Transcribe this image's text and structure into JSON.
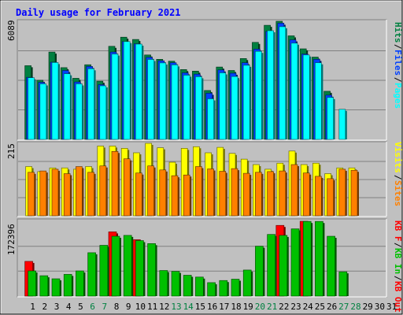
{
  "colors": {
    "background": "#C0C0C0",
    "title": "#0000FF",
    "pages": "#00FFFF",
    "files": "#0040FF",
    "hits": "#008040",
    "visits": "#FFFF00",
    "sites": "#FF8000",
    "kb_in": "#00C000",
    "kb_out": "#FF0000",
    "kb_f": "#FF0000",
    "day_weekday": "#000000",
    "day_weekend": "#008040",
    "day_empty": "#000000"
  },
  "chart_data": {
    "type": "bar",
    "title": "Daily usage for February 2021",
    "days": [
      "1",
      "2",
      "3",
      "4",
      "5",
      "6",
      "7",
      "8",
      "9",
      "10",
      "11",
      "12",
      "13",
      "14",
      "15",
      "16",
      "17",
      "18",
      "19",
      "20",
      "21",
      "22",
      "23",
      "24",
      "25",
      "26",
      "27",
      "28",
      "29",
      "30",
      "31"
    ],
    "weekend_days": [
      "6",
      "7",
      "13",
      "14",
      "20",
      "21",
      "27",
      "28"
    ],
    "days_with_data": 28,
    "panels": [
      {
        "id": "hits_files_pages",
        "max_label": "6089",
        "ymax": 6089,
        "legend": [
          {
            "text": "Hits",
            "key": "hits"
          },
          {
            "text": "Files",
            "key": "files"
          },
          {
            "text": "Pages",
            "key": "pages"
          }
        ],
        "series": [
          {
            "name": "Hits",
            "color_key": "hits",
            "values": [
              3800,
              3050,
              4500,
              3700,
              3150,
              3850,
              3000,
              4800,
              5270,
              5150,
              4350,
              4130,
              4030,
              3600,
              3520,
              2520,
              3730,
              3550,
              4170,
              5000,
              5880,
              6089,
              5340,
              4670,
              4240,
              2480,
              null,
              null
            ]
          },
          {
            "name": "Files",
            "color_key": "files",
            "values": [
              3200,
              2940,
              3980,
              3550,
              2960,
              3760,
              2820,
              4500,
              5040,
              4930,
              4230,
              4050,
              3950,
              3430,
              3360,
              2380,
              3580,
              3410,
              3950,
              4650,
              5570,
              5990,
              5130,
              4400,
              4130,
              2280,
              null,
              null
            ]
          },
          {
            "name": "Pages",
            "color_key": "pages",
            "values": [
              3180,
              2860,
              3960,
              3380,
              2860,
              3640,
              2760,
              4400,
              5040,
              4910,
              4120,
              3940,
              3840,
              3310,
              3230,
              2090,
              3430,
              3240,
              3820,
              4540,
              5600,
              5810,
              4960,
              4350,
              3950,
              2160,
              1550,
              null
            ]
          }
        ]
      },
      {
        "id": "visits_sites",
        "max_label": "215",
        "ymax": 215,
        "legend": [
          {
            "text": "Visits",
            "key": "visits"
          },
          {
            "text": "Sites",
            "key": "sites"
          }
        ],
        "series": [
          {
            "name": "Visits",
            "color_key": "visits",
            "values": [
              146,
              131,
              142,
              142,
              138,
              146,
              207,
              207,
              200,
              187,
              215,
              202,
              159,
              200,
              205,
              187,
              203,
              185,
              168,
              152,
              138,
              156,
              192,
              152,
              156,
              125,
              142,
              142
            ]
          },
          {
            "name": "Sites",
            "color_key": "sites",
            "values": [
              129,
              133,
              138,
              125,
              146,
              129,
              148,
              191,
              169,
              127,
              148,
              136,
              119,
              121,
              146,
              139,
              132,
              140,
              126,
              129,
              131,
              133,
              152,
              127,
              117,
              110,
              138,
              135
            ]
          }
        ]
      },
      {
        "id": "kbin_kbout",
        "max_label": "172396",
        "ymax": 172396,
        "legend": [
          {
            "text": "KB F",
            "key": "kb_f"
          },
          {
            "text": "KB In",
            "key": "kb_in"
          },
          {
            "text": "KB Out",
            "key": "kb_out"
          }
        ],
        "series": [
          {
            "name": "KB Out",
            "color_key": "kb_out",
            "values": [
              80000,
              null,
              null,
              null,
              null,
              null,
              null,
              148000,
              null,
              130000,
              null,
              null,
              null,
              null,
              null,
              null,
              null,
              null,
              null,
              null,
              null,
              163000,
              null,
              172396,
              null,
              null,
              null,
              null
            ]
          },
          {
            "name": "KB In",
            "color_key": "kb_in",
            "values": [
              58000,
              47000,
              40000,
              50000,
              58000,
              100000,
              117000,
              138000,
              140000,
              128000,
              121000,
              59000,
              57000,
              48000,
              44000,
              31000,
              36000,
              39000,
              60000,
              115000,
              142000,
              140000,
              155000,
              172000,
              172000,
              138000,
              56000,
              null
            ]
          }
        ]
      }
    ]
  }
}
